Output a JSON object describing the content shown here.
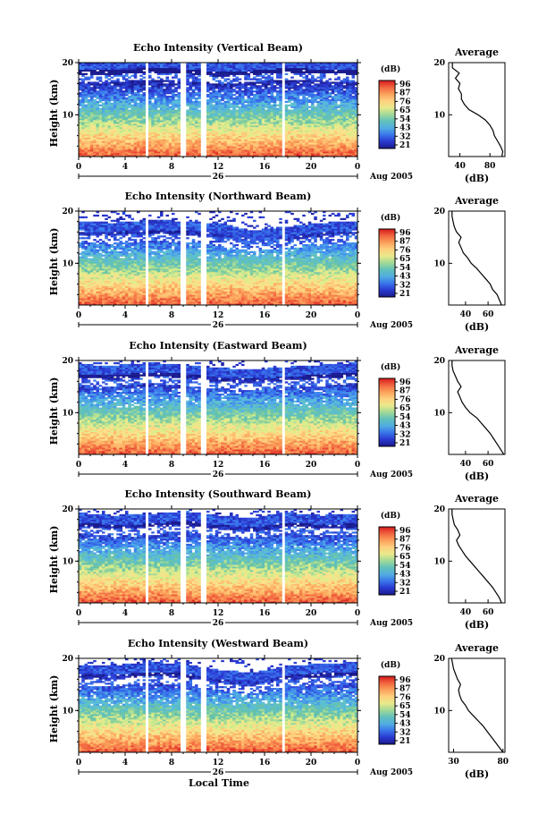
{
  "colorbar": {
    "unit": "(dB)",
    "tick_labels": [
      "96",
      "87",
      "76",
      "65",
      "54",
      "43",
      "32",
      "21"
    ],
    "colors": [
      "#d7191c",
      "#f46d43",
      "#fdae61",
      "#fee08b",
      "#d9ef8b",
      "#66c2a5",
      "#5aa0ff",
      "#2b3bd6",
      "#1a1a8c"
    ]
  },
  "shared": {
    "x_ticks": [
      "0",
      "4",
      "8",
      "12",
      "16",
      "20",
      "0"
    ],
    "date_label": "26",
    "month_year": "Aug 2005",
    "xlabel": "Local Time"
  },
  "chart_data": [
    {
      "type": "heatmap",
      "title": "Echo Intensity (Vertical Beam)",
      "ylabel": "Height (km)",
      "yticks": [
        "20",
        "10"
      ],
      "ylim": [
        2,
        20
      ],
      "xlim": [
        0,
        24
      ],
      "gaps_hours": [
        5.9,
        9.0,
        10.6,
        10.9,
        17.6
      ],
      "tops_km": [
        18.5,
        18.5,
        19.0,
        18.8,
        18.2,
        18.5,
        19.0,
        18.7,
        18.6
      ],
      "profile": {
        "title": "Average",
        "xticks": [
          "40",
          "80"
        ],
        "xlabel": "(dB)",
        "xlim": [
          25,
          100
        ],
        "height_km": [
          2.0,
          3.0,
          4.0,
          5.0,
          6.0,
          7.0,
          8.0,
          9.0,
          10.0,
          11.0,
          12.0,
          13.0,
          14.0,
          15.0,
          16.0,
          17.0,
          18.0,
          19.0,
          20.0
        ],
        "db": [
          96,
          97,
          94,
          90,
          86,
          84,
          80,
          74,
          64,
          52,
          46,
          42,
          42,
          38,
          40,
          34,
          39,
          30,
          30
        ]
      }
    },
    {
      "type": "heatmap",
      "title": "Echo Intensity (Northward Beam)",
      "ylabel": "Height (km)",
      "yticks": [
        "20",
        "10"
      ],
      "ylim": [
        2,
        20
      ],
      "xlim": [
        0,
        24
      ],
      "gaps_hours": [
        5.9,
        9.0,
        10.6,
        10.9,
        17.6
      ],
      "tops_km": [
        16.2,
        16.0,
        16.5,
        16.3,
        15.8,
        14.5,
        15.2,
        16.0,
        16.2
      ],
      "profile": {
        "title": "Average",
        "xticks": [
          "40",
          "60"
        ],
        "xlabel": "(dB)",
        "xlim": [
          25,
          75
        ],
        "height_km": [
          2.0,
          3.0,
          4.0,
          5.0,
          6.0,
          7.0,
          8.0,
          9.0,
          10.0,
          11.0,
          12.0,
          13.0,
          14.0,
          15.0,
          16.0,
          17.0,
          18.0,
          19.0,
          20.0
        ],
        "db": [
          72,
          70,
          68,
          64,
          62,
          58,
          54,
          50,
          45,
          42,
          38,
          36,
          34,
          36,
          32,
          30,
          29,
          28,
          28
        ]
      }
    },
    {
      "type": "heatmap",
      "title": "Echo Intensity (Eastward Beam)",
      "ylabel": "Height (km)",
      "yticks": [
        "20",
        "10"
      ],
      "ylim": [
        2,
        20
      ],
      "xlim": [
        0,
        24
      ],
      "gaps_hours": [
        5.9,
        9.0,
        10.6,
        10.9,
        17.6
      ],
      "tops_km": [
        17.5,
        17.2,
        17.8,
        17.5,
        16.8,
        16.5,
        17.0,
        17.4,
        17.8
      ],
      "profile": {
        "title": "Average",
        "xticks": [
          "40",
          "60"
        ],
        "xlabel": "(dB)",
        "xlim": [
          25,
          75
        ],
        "height_km": [
          2.0,
          3.0,
          4.0,
          5.0,
          6.0,
          7.0,
          8.0,
          9.0,
          10.0,
          11.0,
          12.0,
          13.0,
          14.0,
          15.0,
          16.0,
          17.0,
          18.0,
          19.0,
          20.0
        ],
        "db": [
          74,
          71,
          68,
          65,
          62,
          58,
          54,
          50,
          44,
          40,
          37,
          35,
          33,
          36,
          33,
          31,
          29,
          28,
          28
        ]
      }
    },
    {
      "type": "heatmap",
      "title": "Echo Intensity (Southward Beam)",
      "ylabel": "Height (km)",
      "yticks": [
        "20",
        "10"
      ],
      "ylim": [
        2,
        20
      ],
      "xlim": [
        0,
        24
      ],
      "gaps_hours": [
        5.9,
        9.0,
        10.6,
        10.9,
        17.6
      ],
      "tops_km": [
        17.5,
        17.0,
        17.2,
        17.8,
        17.0,
        16.5,
        17.5,
        17.0,
        17.3
      ],
      "profile": {
        "title": "Average",
        "xticks": [
          "40",
          "60"
        ],
        "xlabel": "(dB)",
        "xlim": [
          25,
          75
        ],
        "height_km": [
          2.0,
          3.0,
          4.0,
          5.0,
          6.0,
          7.0,
          8.0,
          9.0,
          10.0,
          11.0,
          12.0,
          13.0,
          14.0,
          15.0,
          16.0,
          17.0,
          18.0,
          19.0,
          20.0
        ],
        "db": [
          72,
          70,
          67,
          64,
          60,
          56,
          52,
          48,
          44,
          40,
          37,
          34,
          32,
          35,
          33,
          30,
          29,
          28,
          28
        ]
      }
    },
    {
      "type": "heatmap",
      "title": "Echo Intensity (Westward Beam)",
      "ylabel": "Height (km)",
      "yticks": [
        "20",
        "10"
      ],
      "ylim": [
        2,
        20
      ],
      "xlim": [
        0,
        24
      ],
      "gaps_hours": [
        5.9,
        9.0,
        10.6,
        10.9,
        17.6
      ],
      "tops_km": [
        17.0,
        16.8,
        17.5,
        17.2,
        16.0,
        15.5,
        16.8,
        17.2,
        17.5
      ],
      "profile": {
        "title": "Average",
        "xticks": [
          "30",
          "80"
        ],
        "xlabel": "(dB)",
        "xlim": [
          25,
          82
        ],
        "height_km": [
          2.0,
          3.0,
          4.0,
          5.0,
          6.0,
          7.0,
          8.0,
          9.0,
          10.0,
          11.0,
          12.0,
          13.0,
          14.0,
          15.0,
          16.0,
          17.0,
          18.0,
          19.0,
          20.0
        ],
        "db": [
          80,
          76,
          72,
          68,
          64,
          60,
          55,
          50,
          45,
          42,
          38,
          36,
          35,
          37,
          34,
          32,
          30,
          29,
          28
        ]
      }
    }
  ]
}
